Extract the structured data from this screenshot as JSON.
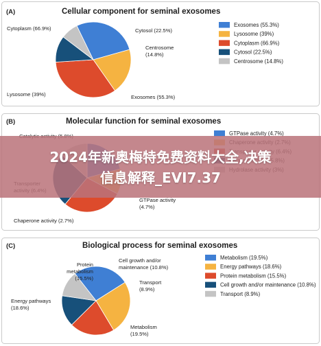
{
  "banner": {
    "line1": "2024年新奥梅特免费资料大全,决策",
    "line2": "信息解释_EVI7.37"
  },
  "chart_data": [
    {
      "type": "pie",
      "panel": "(A)",
      "title": "Cellular component for seminal exosomes",
      "slices": [
        {
          "name": "Exosomes",
          "value": 55.3,
          "label": "Exosomes (55.3%)",
          "color": "#3f7fd4"
        },
        {
          "name": "Lysosome",
          "value": 39,
          "label": "Lysosome (39%)",
          "color": "#f5b341"
        },
        {
          "name": "Cytoplasm",
          "value": 66.9,
          "label": "Cytoplasm (66.9%)",
          "color": "#dd4b2c"
        },
        {
          "name": "Cytosol",
          "value": 22.5,
          "label": "Cytosol (22.5%)",
          "color": "#17507a"
        },
        {
          "name": "Centrosome",
          "value": 14.8,
          "label": "Centrosome (14.8%)",
          "color": "#c4c4c4"
        }
      ],
      "legend": [
        "Exosomes (55.3%)",
        "Lysosome (39%)",
        "Cytoplasm (66.9%)",
        "Cytosol (22.5%)",
        "Centrosome (14.8%)"
      ],
      "callouts": [
        {
          "lines": [
            "Cytoplasm (66.9%)"
          ],
          "anchor": "start"
        },
        {
          "lines": [
            "Cytosol (22.5%)"
          ],
          "anchor": "start"
        },
        {
          "lines": [
            "Centrosome",
            "(14.8%)"
          ],
          "anchor": "start"
        },
        {
          "lines": [
            "Lysosome (39%)"
          ],
          "anchor": "start"
        },
        {
          "lines": [
            "Exosomes (55.3%)"
          ],
          "anchor": "start"
        }
      ]
    },
    {
      "type": "pie",
      "panel": "(B)",
      "title": "Molecular function for seminal exosomes",
      "slices": [
        {
          "name": "GTPase activity",
          "value": 4.7,
          "label": "GTPase activity (4.7%)",
          "color": "#3f7fd4"
        },
        {
          "name": "Chaperone activity",
          "value": 2.7,
          "label": "Chaperone activity (2.7%)",
          "color": "#f5b341"
        },
        {
          "name": "Transporter activity",
          "value": 6.4,
          "label": "Transporter activity (6.4%)",
          "color": "#dd4b2c"
        },
        {
          "name": "Catalytic activity",
          "value": 5.8,
          "label": "Catalytic activity (5.8%)",
          "color": "#17507a"
        },
        {
          "name": "Hydrolase activity",
          "value": 3,
          "label": "Hydrolase activity (3%)",
          "color": "#c4c4c4"
        }
      ],
      "legend": [
        "GTPase activity (4.7%)",
        "Chaperone activity (2.7%)",
        "Transporter activity (6.4%)",
        "Catalytic activity (5.8%)",
        "Hydrolase activity (3%)"
      ],
      "callouts": [
        {
          "lines": [
            "Catalytic activity (5.8%)"
          ],
          "anchor": "start"
        },
        {
          "lines": [
            "Transporter",
            "activity (6.4%)"
          ],
          "anchor": "start"
        },
        {
          "lines": [
            "GTPase activity",
            "(4.7%)"
          ],
          "anchor": "start"
        },
        {
          "lines": [
            "Chaperone activity (2.7%)"
          ],
          "anchor": "start"
        }
      ]
    },
    {
      "type": "pie",
      "panel": "(C)",
      "title": "Biological process for seminal exosomes",
      "slices": [
        {
          "name": "Metabolism",
          "value": 19.5,
          "label": "Metabolism (19.5%)",
          "color": "#3f7fd4"
        },
        {
          "name": "Energy pathways",
          "value": 18.6,
          "label": "Energy pathways (18.6%)",
          "color": "#f5b341"
        },
        {
          "name": "Protein metabolism",
          "value": 15.5,
          "label": "Protein metabolism (15.5%)",
          "color": "#dd4b2c"
        },
        {
          "name": "Cell growth and/or maintenance",
          "value": 10.8,
          "label": "Cell growth and/or maintenance (10.8%)",
          "color": "#17507a"
        },
        {
          "name": "Transport",
          "value": 8.9,
          "label": "Transport (8.9%)",
          "color": "#c4c4c4"
        }
      ],
      "legend": [
        "Metabolism (19.5%)",
        "Energy pathways (18.6%)",
        "Protein metabolism (15.5%)",
        "Cell growth and/or maintenance (10.8%)",
        "Transport (8.9%)"
      ],
      "callouts": [
        {
          "lines": [
            "Protein",
            "metabolism",
            "(15.5%)"
          ],
          "anchor": "end"
        },
        {
          "lines": [
            "Cell growth and/or",
            "maintenance (10.8%)"
          ],
          "anchor": "start"
        },
        {
          "lines": [
            "Transport",
            "(8.9%)"
          ],
          "anchor": "start"
        },
        {
          "lines": [
            "Energy pathways",
            "(18.6%)"
          ],
          "anchor": "start"
        },
        {
          "lines": [
            "Metabolism",
            "(19.5%)"
          ],
          "anchor": "start"
        }
      ]
    }
  ]
}
